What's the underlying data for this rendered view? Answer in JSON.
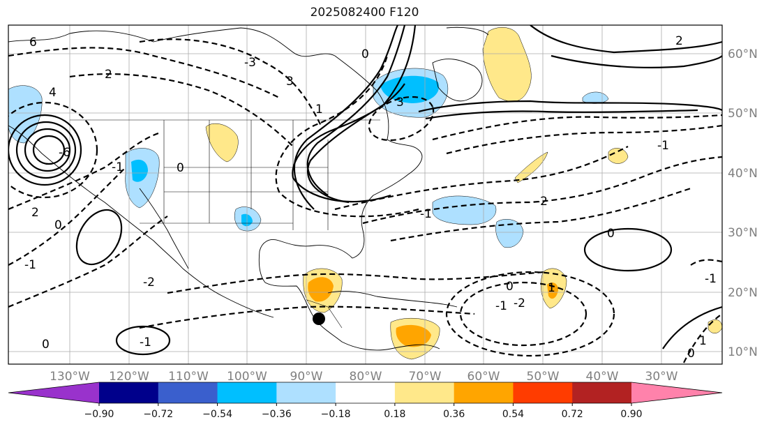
{
  "title": "2025082400 F120",
  "longitude_labels": [
    "130°W",
    "120°W",
    "110°W",
    "100°W",
    "90°W",
    "80°W",
    "70°W",
    "60°W",
    "50°W",
    "40°W",
    "30°W"
  ],
  "latitude_labels": [
    "60°N",
    "50°N",
    "40°N",
    "30°N",
    "20°N",
    "10°N"
  ],
  "colorbar": {
    "tick_labels": [
      "−0.90",
      "−0.72",
      "−0.54",
      "−0.36",
      "−0.18",
      "0.18",
      "0.36",
      "0.54",
      "0.72",
      "0.90"
    ],
    "colors": [
      "#9932cc",
      "#00008b",
      "#3a5fcd",
      "#00bfff",
      "#aee0ff",
      "#ffffff",
      "#ffe88a",
      "#ffa500",
      "#ff3c00",
      "#b22222",
      "#ff82ab"
    ]
  },
  "contour_labels": [
    "6",
    "2",
    "4",
    "0",
    "3",
    "1",
    "2",
    "0",
    "-1",
    "-2",
    "-3",
    "-6",
    "-1",
    "0",
    "3",
    "2",
    "-1",
    "-2",
    "-1",
    "0",
    "-1",
    "0",
    "1",
    "-1",
    "-2",
    "1",
    "0",
    "-1",
    "0"
  ],
  "marker": "storm-center-dot"
}
